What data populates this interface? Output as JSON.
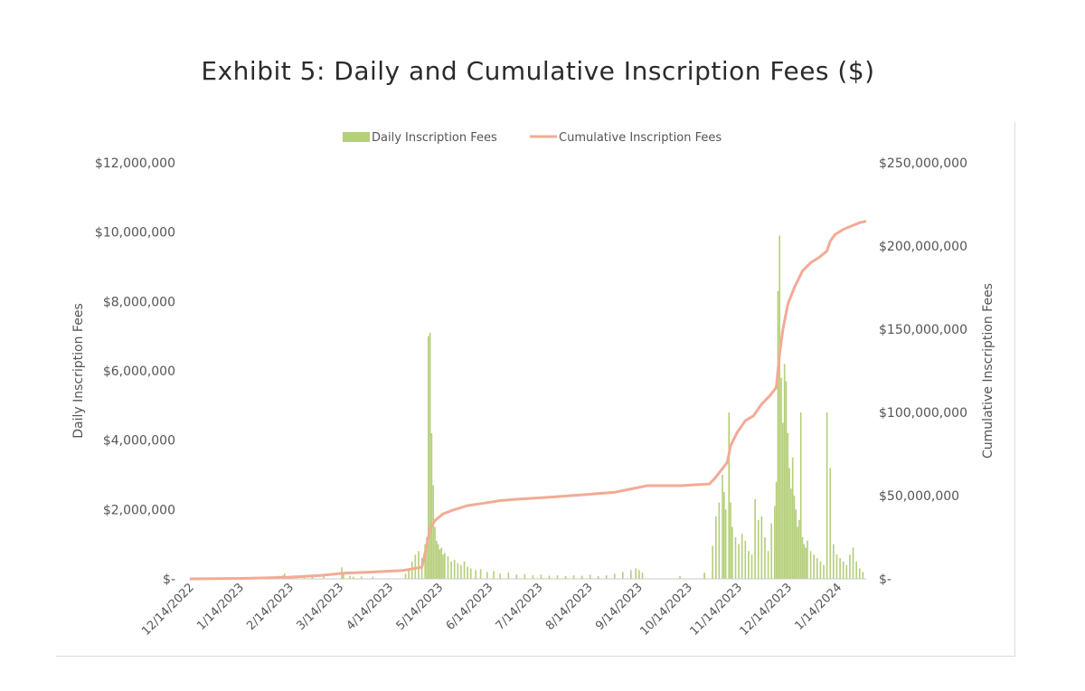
{
  "chart_data": {
    "type": "bar+line",
    "title": "Exhibit 5: Daily and Cumulative Inscription Fees ($)",
    "y_left_label": "Daily Inscription Fees",
    "y_right_label": "Cumulative Inscription Fees",
    "y_left_range": [
      0,
      12000000
    ],
    "y_right_range": [
      0,
      250000000
    ],
    "y_left_ticks": [
      "$-",
      "$2,000,000",
      "$4,000,000",
      "$6,000,000",
      "$8,000,000",
      "$10,000,000",
      "$12,000,000"
    ],
    "y_right_ticks": [
      "$-",
      "$50,000,000",
      "$100,000,000",
      "$150,000,000",
      "$200,000,000",
      "$250,000,000"
    ],
    "x_ticks": [
      "12/14/2022",
      "1/14/2023",
      "2/14/2023",
      "3/14/2023",
      "4/14/2023",
      "5/14/2023",
      "6/14/2023",
      "7/14/2023",
      "8/14/2023",
      "9/14/2023",
      "10/14/2023",
      "11/14/2023",
      "12/14/2023",
      "1/14/2024"
    ],
    "x_range_days": [
      0,
      414
    ],
    "legend": [
      {
        "name": "Daily Inscription Fees",
        "color": "#b5cf7a"
      },
      {
        "name": "Cumulative Inscription Fees",
        "color": "#f2ab96"
      }
    ],
    "series": [
      {
        "name": "Daily Inscription Fees",
        "type": "bar",
        "color": "#b5cf7a",
        "points": [
          [
            53,
            60000
          ],
          [
            54,
            90000
          ],
          [
            57,
            100000
          ],
          [
            58,
            150000
          ],
          [
            63,
            50000
          ],
          [
            70,
            80000
          ],
          [
            75,
            100000
          ],
          [
            82,
            120000
          ],
          [
            93,
            330000
          ],
          [
            94,
            180000
          ],
          [
            98,
            80000
          ],
          [
            100,
            60000
          ],
          [
            105,
            70000
          ],
          [
            112,
            60000
          ],
          [
            132,
            150000
          ],
          [
            134,
            300000
          ],
          [
            136,
            500000
          ],
          [
            138,
            700000
          ],
          [
            140,
            800000
          ],
          [
            142,
            600000
          ],
          [
            144,
            1000000
          ],
          [
            145,
            1200000
          ],
          [
            146,
            7000000
          ],
          [
            147,
            7100000
          ],
          [
            148,
            4200000
          ],
          [
            149,
            2700000
          ],
          [
            150,
            1500000
          ],
          [
            151,
            1100000
          ],
          [
            152,
            1000000
          ],
          [
            153,
            850000
          ],
          [
            154,
            900000
          ],
          [
            155,
            700000
          ],
          [
            156,
            750000
          ],
          [
            158,
            650000
          ],
          [
            160,
            500000
          ],
          [
            162,
            550000
          ],
          [
            164,
            450000
          ],
          [
            166,
            400000
          ],
          [
            168,
            500000
          ],
          [
            170,
            350000
          ],
          [
            172,
            300000
          ],
          [
            175,
            250000
          ],
          [
            178,
            280000
          ],
          [
            182,
            200000
          ],
          [
            186,
            220000
          ],
          [
            190,
            150000
          ],
          [
            195,
            180000
          ],
          [
            200,
            120000
          ],
          [
            205,
            130000
          ],
          [
            210,
            100000
          ],
          [
            215,
            120000
          ],
          [
            220,
            90000
          ],
          [
            225,
            100000
          ],
          [
            230,
            80000
          ],
          [
            235,
            100000
          ],
          [
            240,
            90000
          ],
          [
            245,
            120000
          ],
          [
            250,
            80000
          ],
          [
            255,
            100000
          ],
          [
            260,
            150000
          ],
          [
            265,
            200000
          ],
          [
            270,
            250000
          ],
          [
            273,
            300000
          ],
          [
            275,
            250000
          ],
          [
            277,
            180000
          ],
          [
            300,
            80000
          ],
          [
            315,
            120000
          ],
          [
            315,
            180000
          ],
          [
            320,
            950000
          ],
          [
            322,
            1800000
          ],
          [
            324,
            2200000
          ],
          [
            326,
            3000000
          ],
          [
            327,
            2500000
          ],
          [
            328,
            2000000
          ],
          [
            330,
            4800000
          ],
          [
            331,
            2200000
          ],
          [
            332,
            1500000
          ],
          [
            334,
            1200000
          ],
          [
            336,
            1000000
          ],
          [
            338,
            1300000
          ],
          [
            340,
            1100000
          ],
          [
            342,
            800000
          ],
          [
            344,
            700000
          ],
          [
            346,
            2300000
          ],
          [
            348,
            1700000
          ],
          [
            350,
            1800000
          ],
          [
            352,
            1200000
          ],
          [
            354,
            800000
          ],
          [
            356,
            1600000
          ],
          [
            358,
            2100000
          ],
          [
            359,
            2800000
          ],
          [
            360,
            8300000
          ],
          [
            361,
            9900000
          ],
          [
            362,
            5800000
          ],
          [
            363,
            4500000
          ],
          [
            364,
            6200000
          ],
          [
            365,
            5700000
          ],
          [
            366,
            4200000
          ],
          [
            367,
            3200000
          ],
          [
            368,
            2600000
          ],
          [
            369,
            3500000
          ],
          [
            370,
            2400000
          ],
          [
            371,
            2000000
          ],
          [
            372,
            1500000
          ],
          [
            373,
            1700000
          ],
          [
            374,
            4800000
          ],
          [
            375,
            1200000
          ],
          [
            376,
            1000000
          ],
          [
            377,
            900000
          ],
          [
            378,
            1100000
          ],
          [
            380,
            800000
          ],
          [
            382,
            700000
          ],
          [
            384,
            600000
          ],
          [
            386,
            500000
          ],
          [
            388,
            400000
          ],
          [
            390,
            4800000
          ],
          [
            392,
            3200000
          ],
          [
            394,
            1000000
          ],
          [
            396,
            700000
          ],
          [
            398,
            600000
          ],
          [
            400,
            500000
          ],
          [
            402,
            400000
          ],
          [
            404,
            700000
          ],
          [
            406,
            900000
          ],
          [
            408,
            500000
          ],
          [
            410,
            300000
          ],
          [
            412,
            200000
          ]
        ]
      },
      {
        "name": "Cumulative Inscription Fees",
        "type": "line",
        "color": "#f2ab96",
        "points": [
          [
            0,
            0
          ],
          [
            30,
            200000
          ],
          [
            60,
            1000000
          ],
          [
            80,
            2000000
          ],
          [
            95,
            3500000
          ],
          [
            110,
            4000000
          ],
          [
            130,
            5000000
          ],
          [
            142,
            7000000
          ],
          [
            145,
            20000000
          ],
          [
            147,
            30000000
          ],
          [
            150,
            35000000
          ],
          [
            155,
            39000000
          ],
          [
            160,
            41000000
          ],
          [
            170,
            44000000
          ],
          [
            180,
            45500000
          ],
          [
            190,
            47000000
          ],
          [
            200,
            47800000
          ],
          [
            220,
            49000000
          ],
          [
            240,
            50500000
          ],
          [
            260,
            52000000
          ],
          [
            270,
            54000000
          ],
          [
            280,
            56000000
          ],
          [
            300,
            56000000
          ],
          [
            318,
            57000000
          ],
          [
            321,
            60000000
          ],
          [
            325,
            65000000
          ],
          [
            329,
            70000000
          ],
          [
            331,
            80000000
          ],
          [
            335,
            88000000
          ],
          [
            340,
            95000000
          ],
          [
            345,
            98000000
          ],
          [
            350,
            105000000
          ],
          [
            355,
            110000000
          ],
          [
            359,
            115000000
          ],
          [
            361,
            135000000
          ],
          [
            363,
            150000000
          ],
          [
            366,
            165000000
          ],
          [
            370,
            175000000
          ],
          [
            375,
            185000000
          ],
          [
            380,
            190000000
          ],
          [
            385,
            193000000
          ],
          [
            390,
            197000000
          ],
          [
            392,
            203000000
          ],
          [
            395,
            207000000
          ],
          [
            400,
            210000000
          ],
          [
            405,
            212000000
          ],
          [
            410,
            214000000
          ],
          [
            414,
            215000000
          ]
        ]
      }
    ]
  }
}
